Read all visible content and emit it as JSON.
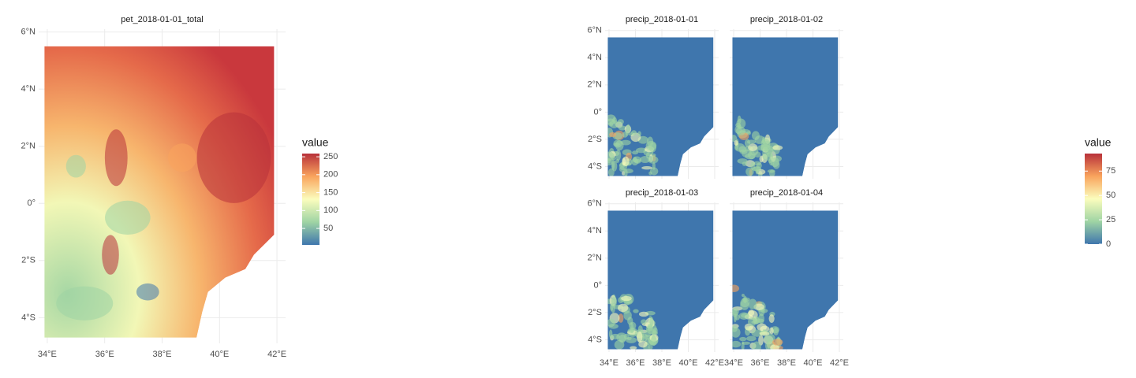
{
  "chart_data": [
    {
      "type": "raster",
      "title": "pet_2018-01-01_total",
      "xlim": [
        33.7,
        42.3
      ],
      "ylim": [
        -4.9,
        6.1
      ],
      "xticks": [
        {
          "value": 34,
          "label": "34°E"
        },
        {
          "value": 36,
          "label": "36°E"
        },
        {
          "value": 38,
          "label": "38°E"
        },
        {
          "value": 40,
          "label": "40°E"
        },
        {
          "value": 42,
          "label": "42°E"
        }
      ],
      "yticks": [
        {
          "value": -4,
          "label": "4°S"
        },
        {
          "value": -2,
          "label": "2°S"
        },
        {
          "value": 0,
          "label": "0°"
        },
        {
          "value": 2,
          "label": "2°N"
        },
        {
          "value": 4,
          "label": "4°N"
        },
        {
          "value": 6,
          "label": "6°N"
        }
      ],
      "grid": true,
      "legend_title": "value",
      "colorbar_lim": [
        4,
        259
      ],
      "colorbar_ticks": [
        50,
        100,
        150,
        200,
        250
      ],
      "palette": [
        "#3f76ad",
        "#9fd4a4",
        "#fbfdbd",
        "#f9a45d",
        "#b8313a"
      ]
    },
    {
      "type": "facet_raster",
      "facets": [
        "precip_2018-01-01",
        "precip_2018-01-02",
        "precip_2018-01-03",
        "precip_2018-01-04"
      ],
      "xlim": [
        33.7,
        42.3
      ],
      "ylim": [
        -4.9,
        6.1
      ],
      "xticks": [
        {
          "value": 34,
          "label": "34°E"
        },
        {
          "value": 36,
          "label": "36°E"
        },
        {
          "value": 38,
          "label": "38°E"
        },
        {
          "value": 40,
          "label": "40°E"
        },
        {
          "value": 42,
          "label": "42°E"
        }
      ],
      "yticks": [
        {
          "value": -4,
          "label": "4°S"
        },
        {
          "value": -2,
          "label": "2°S"
        },
        {
          "value": 0,
          "label": "0°"
        },
        {
          "value": 2,
          "label": "2°N"
        },
        {
          "value": 4,
          "label": "4°N"
        },
        {
          "value": 6,
          "label": "6°N"
        }
      ],
      "grid": true,
      "legend_title": "value",
      "colorbar_lim": [
        0,
        93
      ],
      "colorbar_ticks": [
        0,
        25,
        50,
        75
      ],
      "palette": [
        "#3f76ad",
        "#9fd4a4",
        "#fbfdbd",
        "#f9a45d",
        "#b8313a"
      ]
    }
  ]
}
